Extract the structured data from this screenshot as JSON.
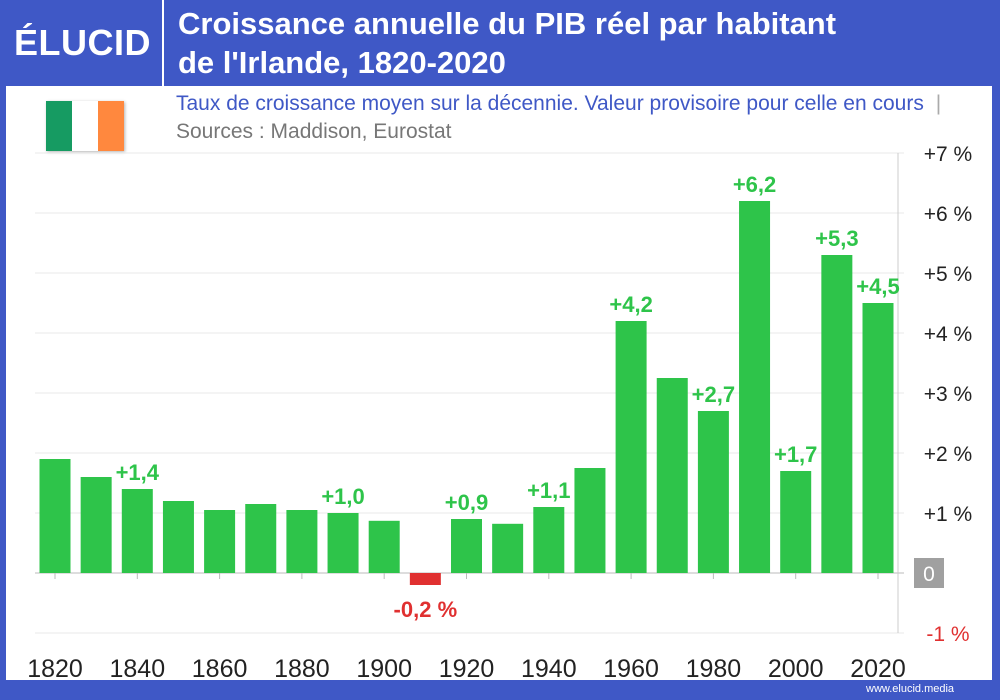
{
  "header": {
    "logo": "ÉLUCID",
    "title_line1": "Croissance annuelle du PIB réel par habitant",
    "title_line2": "de l'Irlande, 1820-2020"
  },
  "subtitle": {
    "text": "Taux de croissance moyen sur la décennie. Valeur provisoire pour celle en cours",
    "separator": "|",
    "sources": "Sources : Maddison, Eurostat"
  },
  "flag": {
    "colors": [
      "#169b62",
      "#ffffff",
      "#ff883e"
    ]
  },
  "footer": {
    "url": "www.elucid.media"
  },
  "chart_data": {
    "type": "bar",
    "title": "Croissance annuelle du PIB réel par habitant de l'Irlande, 1820-2020",
    "categories": [
      1820,
      1830,
      1840,
      1850,
      1860,
      1870,
      1880,
      1890,
      1900,
      1910,
      1920,
      1930,
      1940,
      1950,
      1960,
      1970,
      1980,
      1990,
      2000,
      2010,
      2020
    ],
    "values": [
      1.9,
      1.6,
      1.4,
      1.2,
      1.05,
      1.15,
      1.05,
      1.0,
      0.87,
      -0.2,
      0.9,
      0.82,
      1.1,
      1.75,
      4.2,
      3.25,
      2.7,
      6.2,
      1.7,
      5.3,
      4.5
    ],
    "data_labels": [
      null,
      null,
      "+1,4",
      null,
      null,
      null,
      null,
      "+1,0",
      null,
      "-0,2 %",
      "+0,9",
      null,
      "+1,1",
      null,
      "+4,2",
      null,
      "+2,7",
      "+6,2",
      "+1,7",
      "+5,3",
      "+4,5"
    ],
    "x_tick_labels": [
      "1820",
      "1840",
      "1860",
      "1880",
      "1900",
      "1920",
      "1940",
      "1960",
      "1980",
      "2000",
      "2020"
    ],
    "y_tick_labels": [
      "-1 %",
      "0",
      "+1 %",
      "+2 %",
      "+3 %",
      "+4 %",
      "+5 %",
      "+6 %",
      "+7 %"
    ],
    "y_ticks": [
      -1,
      0,
      1,
      2,
      3,
      4,
      5,
      6,
      7
    ],
    "ylim": [
      -1,
      7
    ],
    "grid": true,
    "y_axis_position": "right",
    "colors": {
      "positive": "#2ec44a",
      "negative": "#e03030",
      "label_positive": "#2ec44a",
      "label_negative": "#e03030",
      "zero_badge": "#a0a0a0"
    }
  }
}
